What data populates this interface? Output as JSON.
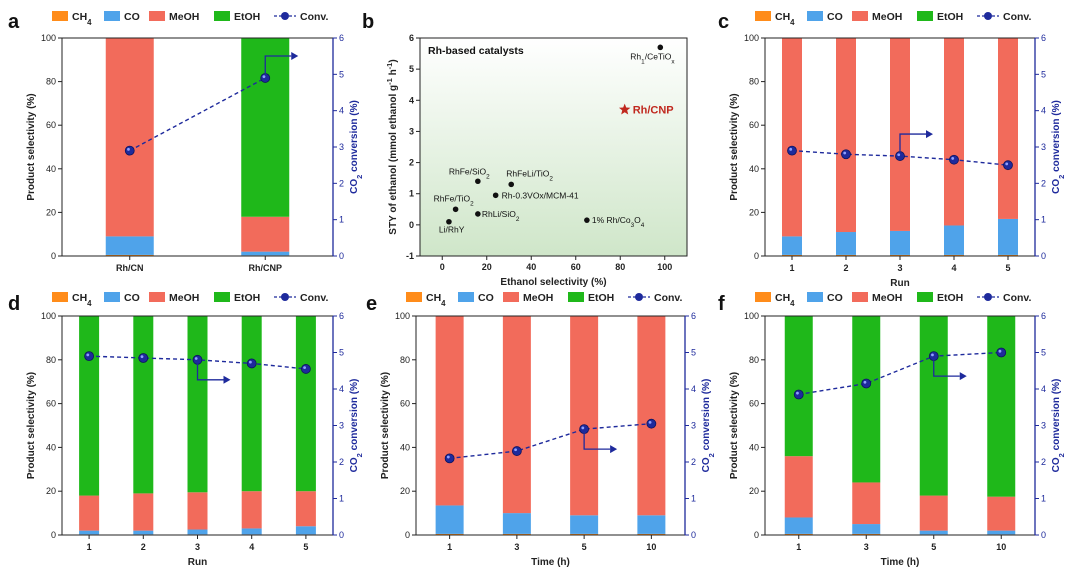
{
  "colors": {
    "ch4": "#ff8c1a",
    "co": "#4fa3ea",
    "meoh": "#f26b5b",
    "etoh": "#1fb81a",
    "conv": "#1e2a9c"
  },
  "legend": {
    "ch4": "CH4",
    "co": "CO",
    "meoh": "MeOH",
    "etoh": "EtOH",
    "conv": "Conv."
  },
  "chart_data": [
    {
      "panel": "a",
      "type": "bar",
      "stacked": true,
      "categories": [
        "Rh/CN",
        "Rh/CNP"
      ],
      "xlabel": "",
      "ylabel": "Product selectivity (%)",
      "y2label": "CO2 conversion (%)",
      "ylim": [
        0,
        100
      ],
      "y2lim": [
        0,
        6
      ],
      "yticks": [
        0,
        20,
        40,
        60,
        80,
        100
      ],
      "y2ticks": [
        0,
        1,
        2,
        3,
        4,
        5,
        6
      ],
      "series": [
        {
          "name": "CH4",
          "values": [
            0.5,
            0.3
          ]
        },
        {
          "name": "CO",
          "values": [
            8.5,
            1.7
          ]
        },
        {
          "name": "MeOH",
          "values": [
            91,
            16
          ]
        },
        {
          "name": "EtOH",
          "values": [
            0,
            82
          ]
        }
      ],
      "conversion": [
        2.9,
        4.9
      ]
    },
    {
      "panel": "b",
      "type": "scatter",
      "title": "Rh-based catalysts",
      "xlabel": "Ethanol selectivity (%)",
      "ylabel": "STY of ethanol (mmol ethanol g-1 h-1)",
      "xlim": [
        -10,
        110
      ],
      "ylim": [
        -1,
        6
      ],
      "xticks": [
        0,
        20,
        40,
        60,
        80,
        100
      ],
      "yticks": [
        -1,
        0,
        1,
        2,
        3,
        4,
        5,
        6
      ],
      "points": [
        {
          "label": "Rh1/CeTiOx",
          "x": 98,
          "y": 5.7
        },
        {
          "label": "Rh/CNP",
          "x": 82,
          "y": 3.7,
          "highlight": true
        },
        {
          "label": "RhFe/SiO2",
          "x": 16,
          "y": 1.4
        },
        {
          "label": "RhFeLi/TiO2",
          "x": 31,
          "y": 1.3
        },
        {
          "label": "RhFe/TiO2",
          "x": 6,
          "y": 0.5
        },
        {
          "label": "Rh-0.3VOx/MCM-41",
          "x": 24,
          "y": 0.95
        },
        {
          "label": "RhLi/SiO2",
          "x": 16,
          "y": 0.35
        },
        {
          "label": "1% Rh/Co3O4",
          "x": 65,
          "y": 0.15
        },
        {
          "label": "Li/RhY",
          "x": 3,
          "y": 0.1
        }
      ]
    },
    {
      "panel": "c",
      "type": "bar",
      "stacked": true,
      "categories": [
        "1",
        "2",
        "3",
        "4",
        "5"
      ],
      "xlabel": "Run",
      "ylabel": "Product selectivity (%)",
      "y2label": "CO2 conversion (%)",
      "ylim": [
        0,
        100
      ],
      "y2lim": [
        0,
        6
      ],
      "yticks": [
        0,
        20,
        40,
        60,
        80,
        100
      ],
      "y2ticks": [
        0,
        1,
        2,
        3,
        4,
        5,
        6
      ],
      "series": [
        {
          "name": "CH4",
          "values": [
            0.5,
            0.5,
            0.5,
            0.5,
            0.5
          ]
        },
        {
          "name": "CO",
          "values": [
            8.5,
            10.5,
            11,
            13.5,
            16.5
          ]
        },
        {
          "name": "MeOH",
          "values": [
            91,
            89,
            88.5,
            86,
            83
          ]
        },
        {
          "name": "EtOH",
          "values": [
            0,
            0,
            0,
            0,
            0
          ]
        }
      ],
      "conversion": [
        2.9,
        2.8,
        2.75,
        2.65,
        2.5
      ]
    },
    {
      "panel": "d",
      "type": "bar",
      "stacked": true,
      "categories": [
        "1",
        "2",
        "3",
        "4",
        "5"
      ],
      "xlabel": "Run",
      "ylabel": "Product selectivity (%)",
      "y2label": "CO2 conversion (%)",
      "ylim": [
        0,
        100
      ],
      "y2lim": [
        0,
        6
      ],
      "yticks": [
        0,
        20,
        40,
        60,
        80,
        100
      ],
      "y2ticks": [
        0,
        1,
        2,
        3,
        4,
        5,
        6
      ],
      "series": [
        {
          "name": "CH4",
          "values": [
            0.3,
            0.3,
            0.3,
            0.3,
            0.3
          ]
        },
        {
          "name": "CO",
          "values": [
            1.7,
            1.7,
            2.2,
            2.7,
            3.7
          ]
        },
        {
          "name": "MeOH",
          "values": [
            16,
            17,
            17,
            17,
            16
          ]
        },
        {
          "name": "EtOH",
          "values": [
            82,
            81,
            80.5,
            80,
            80
          ]
        }
      ],
      "conversion": [
        4.9,
        4.85,
        4.8,
        4.7,
        4.55
      ]
    },
    {
      "panel": "e",
      "type": "bar",
      "stacked": true,
      "categories": [
        "1",
        "3",
        "5",
        "10"
      ],
      "xlabel": "Time (h)",
      "ylabel": "Product selectivity (%)",
      "y2label": "CO2 conversion (%)",
      "ylim": [
        0,
        100
      ],
      "y2lim": [
        0,
        6
      ],
      "yticks": [
        0,
        20,
        40,
        60,
        80,
        100
      ],
      "y2ticks": [
        0,
        1,
        2,
        3,
        4,
        5,
        6
      ],
      "series": [
        {
          "name": "CH4",
          "values": [
            0.5,
            0.5,
            0.5,
            0.5
          ]
        },
        {
          "name": "CO",
          "values": [
            13,
            9.5,
            8.5,
            8.5
          ]
        },
        {
          "name": "MeOH",
          "values": [
            86.5,
            90,
            91,
            91
          ]
        },
        {
          "name": "EtOH",
          "values": [
            0,
            0,
            0,
            0
          ]
        }
      ],
      "conversion": [
        2.1,
        2.3,
        2.9,
        3.05
      ]
    },
    {
      "panel": "f",
      "type": "bar",
      "stacked": true,
      "categories": [
        "1",
        "3",
        "5",
        "10"
      ],
      "xlabel": "Time (h)",
      "ylabel": "Product selectivity (%)",
      "y2label": "CO2 conversion (%)",
      "ylim": [
        0,
        100
      ],
      "y2lim": [
        0,
        6
      ],
      "yticks": [
        0,
        20,
        40,
        60,
        80,
        100
      ],
      "y2ticks": [
        0,
        1,
        2,
        3,
        4,
        5,
        6
      ],
      "series": [
        {
          "name": "CH4",
          "values": [
            0.5,
            0.5,
            0.3,
            0.3
          ]
        },
        {
          "name": "CO",
          "values": [
            7.5,
            4.5,
            1.7,
            1.7
          ]
        },
        {
          "name": "MeOH",
          "values": [
            28,
            19,
            16,
            15.5
          ]
        },
        {
          "name": "EtOH",
          "values": [
            64,
            76,
            82,
            82.5
          ]
        }
      ],
      "conversion": [
        3.85,
        4.15,
        4.9,
        5.0
      ]
    }
  ]
}
